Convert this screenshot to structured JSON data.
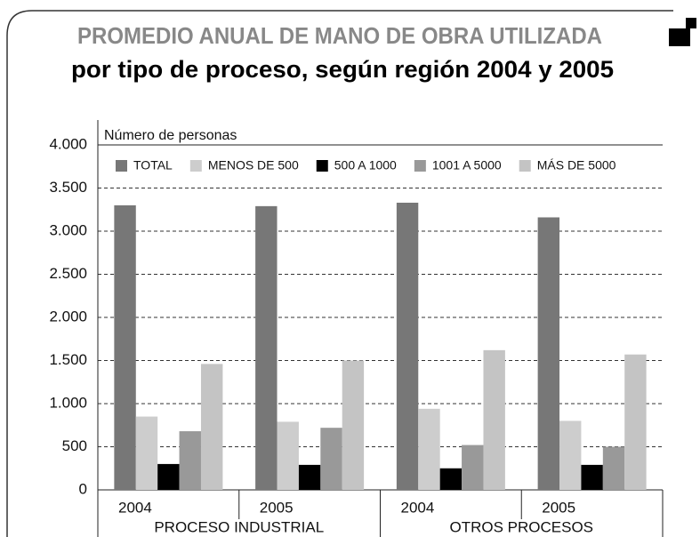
{
  "chart_data": {
    "type": "bar",
    "title": "PROMEDIO ANUAL DE MANO DE OBRA UTILIZADA",
    "subtitle": "por tipo de proceso, según región 2004 y 2005",
    "y_label": "Número de personas",
    "categories": [
      "2004",
      "2005",
      "2004",
      "2005"
    ],
    "groups": [
      "PROCESO INDUSTRIAL",
      "OTROS PROCESOS"
    ],
    "series": [
      {
        "name": "TOTAL",
        "color": "#777777",
        "values": [
          3300,
          3290,
          3330,
          3160
        ]
      },
      {
        "name": "MENOS DE 500",
        "color": "#cdcdcd",
        "values": [
          850,
          790,
          940,
          800
        ]
      },
      {
        "name": "500 A 1000",
        "color": "#000000",
        "values": [
          300,
          290,
          250,
          290
        ]
      },
      {
        "name": "1001  A 5000",
        "color": "#999999",
        "values": [
          680,
          720,
          520,
          500
        ]
      },
      {
        "name": "MÁS  DE 5000",
        "color": "#c4c4c4",
        "values": [
          1460,
          1500,
          1620,
          1570
        ]
      }
    ],
    "ylim": [
      0,
      4000
    ],
    "yticks": [
      0,
      500,
      {
        "value": 1000,
        "label": "1.000"
      },
      {
        "value": 1500,
        "label": "1.500"
      },
      {
        "value": 2000,
        "label": "2.000"
      },
      {
        "value": 2500,
        "label": "2.500"
      },
      {
        "value": 3000,
        "label": "3.000"
      },
      {
        "value": 3500,
        "label": "3.500"
      },
      {
        "value": 4000,
        "label": "4.000"
      }
    ],
    "grid": true
  }
}
